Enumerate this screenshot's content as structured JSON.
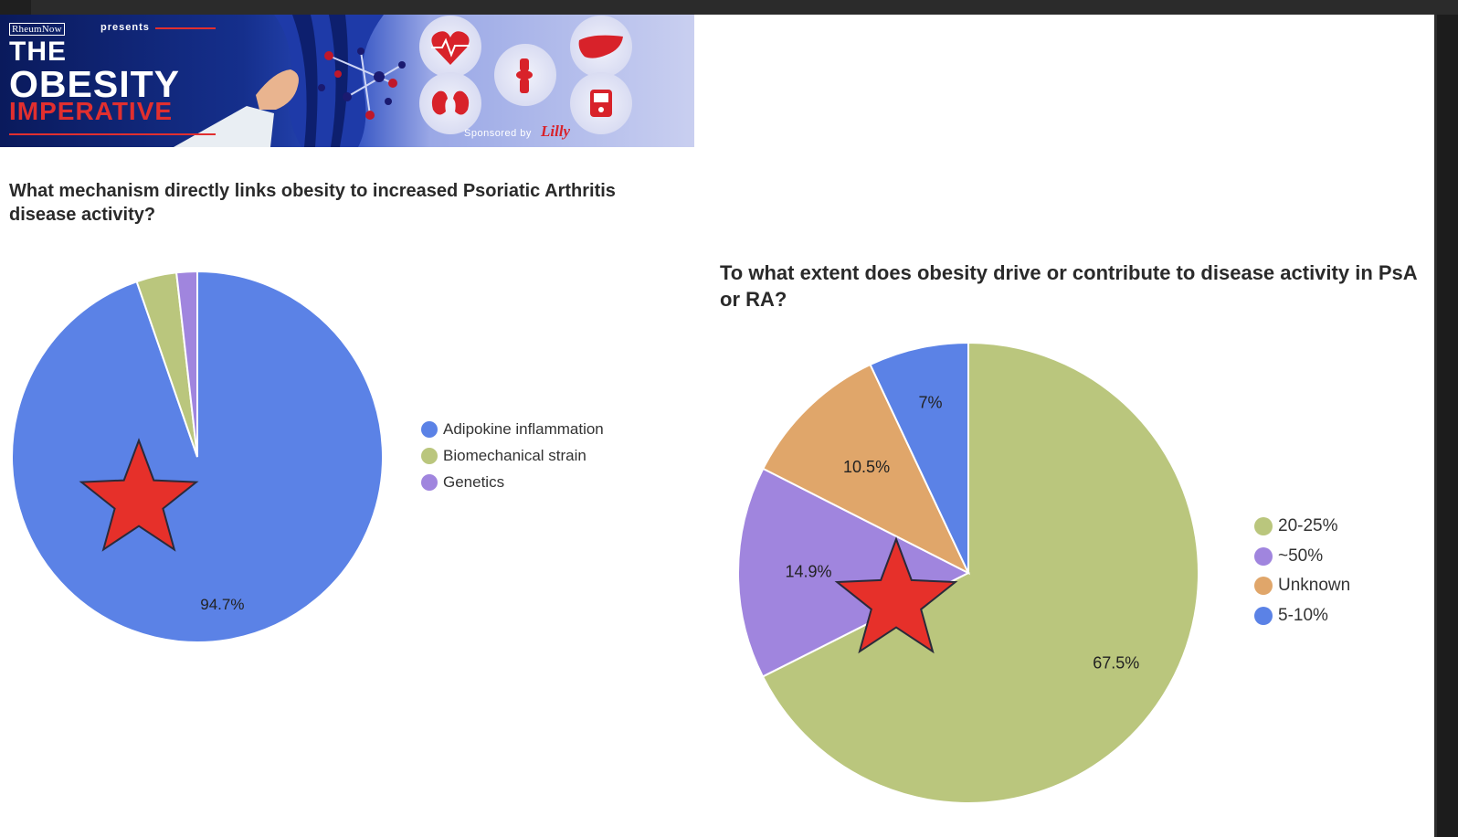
{
  "banner": {
    "logo_text": "RheumNow",
    "presents": "presents",
    "title_line1": "THE",
    "title_line2": "OBESITY",
    "title_line3": "IMPERATIVE",
    "sponsor_text": "Sponsored by",
    "sponsor_name": "Lilly",
    "icon_names": [
      "heart-icon",
      "liver-icon",
      "knee-joint-icon",
      "kidney-icon",
      "glucose-meter-icon"
    ]
  },
  "chart_data": [
    {
      "type": "pie",
      "title": "What mechanism directly links obesity to increased Psoriatic Arthritis disease activity?",
      "categories": [
        "Adipokine inflammation",
        "Biomechanical strain",
        "Genetics"
      ],
      "values": [
        94.7,
        3.5,
        1.8
      ],
      "colors": [
        "#5b82e6",
        "#bac67d",
        "#a085de"
      ],
      "data_labels": [
        "94.7%",
        "",
        ""
      ],
      "start_angle_deg": 0,
      "direction": "clockwise",
      "legend_position": "right",
      "highlight": {
        "category": "Adipokine inflammation",
        "marker": "red-star"
      }
    },
    {
      "type": "pie",
      "title": "To what extent does obesity drive or contribute to disease activity in PsA or RA?",
      "categories": [
        "20-25%",
        "~50%",
        "Unknown",
        "5-10%"
      ],
      "values": [
        67.5,
        14.9,
        10.5,
        7
      ],
      "colors": [
        "#bac67d",
        "#a085de",
        "#e0a66a",
        "#5b82e6"
      ],
      "data_labels": [
        "67.5%",
        "14.9%",
        "10.5%",
        "7%"
      ],
      "start_angle_deg": 0,
      "direction": "clockwise",
      "legend_position": "right",
      "highlight": {
        "category": "~50%",
        "marker": "red-star"
      }
    }
  ],
  "colors": {
    "star_fill": "#e6302a",
    "star_stroke": "#2a2a3a",
    "title_text": "#2a2a2a",
    "banner_red": "#e12f2f"
  }
}
